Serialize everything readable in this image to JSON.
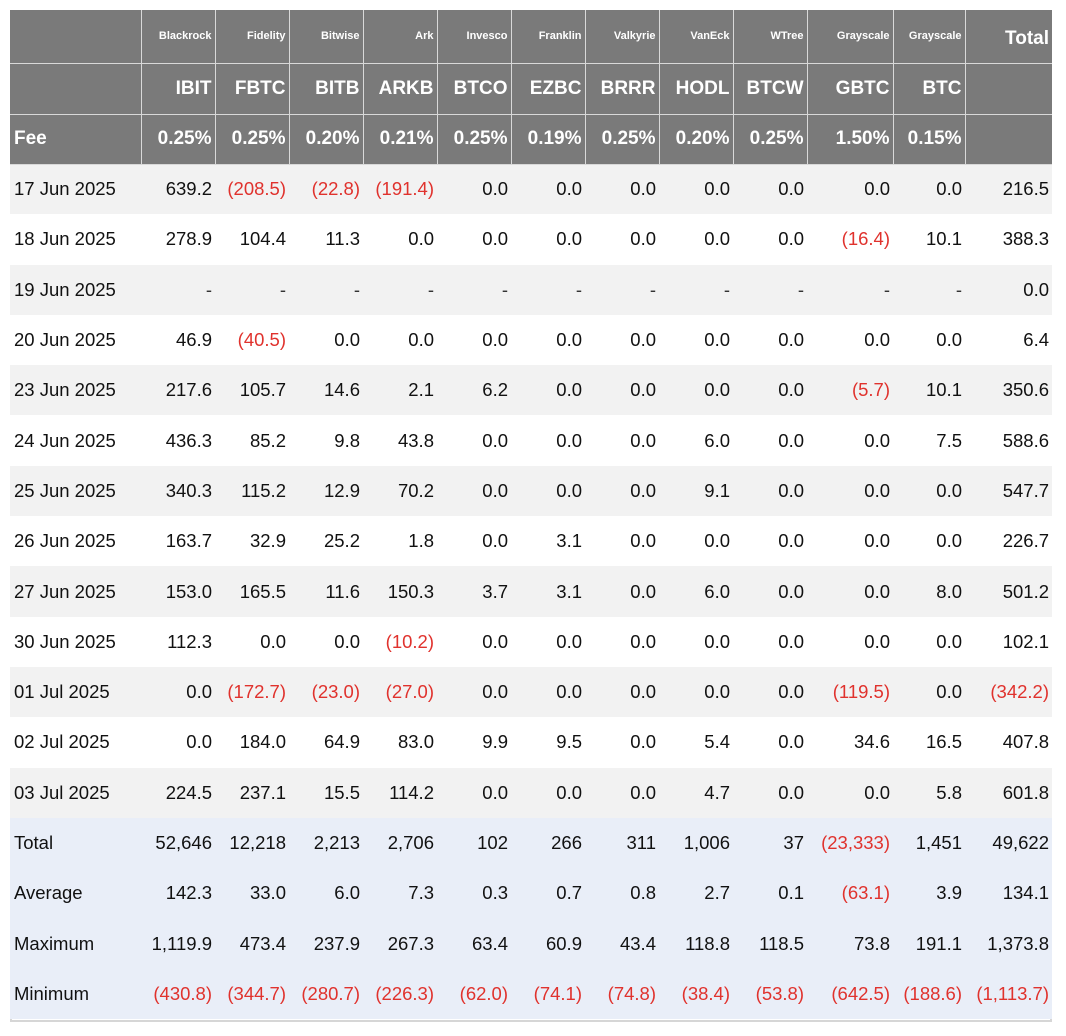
{
  "issuers": [
    "Blackrock",
    "Fidelity",
    "Bitwise",
    "Ark",
    "Invesco",
    "Franklin",
    "Valkyrie",
    "VanEck",
    "WTree",
    "Grayscale",
    "Grayscale"
  ],
  "total_label": "Total",
  "tickers": [
    "IBIT",
    "FBTC",
    "BITB",
    "ARKB",
    "BTCO",
    "EZBC",
    "BRRR",
    "HODL",
    "BTCW",
    "GBTC",
    "BTC"
  ],
  "fee_label": "Fee",
  "fees": [
    "0.25%",
    "0.25%",
    "0.20%",
    "0.21%",
    "0.25%",
    "0.19%",
    "0.25%",
    "0.20%",
    "0.25%",
    "1.50%",
    "0.15%"
  ],
  "rows": [
    {
      "label": "17 Jun 2025",
      "values": [
        "639.2",
        "(208.5)",
        "(22.8)",
        "(191.4)",
        "0.0",
        "0.0",
        "0.0",
        "0.0",
        "0.0",
        "0.0",
        "0.0",
        "216.5"
      ]
    },
    {
      "label": "18 Jun 2025",
      "values": [
        "278.9",
        "104.4",
        "11.3",
        "0.0",
        "0.0",
        "0.0",
        "0.0",
        "0.0",
        "0.0",
        "(16.4)",
        "10.1",
        "388.3"
      ]
    },
    {
      "label": "19 Jun 2025",
      "values": [
        "-",
        "-",
        "-",
        "-",
        "-",
        "-",
        "-",
        "-",
        "-",
        "-",
        "-",
        "0.0"
      ]
    },
    {
      "label": "20 Jun 2025",
      "values": [
        "46.9",
        "(40.5)",
        "0.0",
        "0.0",
        "0.0",
        "0.0",
        "0.0",
        "0.0",
        "0.0",
        "0.0",
        "0.0",
        "6.4"
      ]
    },
    {
      "label": "23 Jun 2025",
      "values": [
        "217.6",
        "105.7",
        "14.6",
        "2.1",
        "6.2",
        "0.0",
        "0.0",
        "0.0",
        "0.0",
        "(5.7)",
        "10.1",
        "350.6"
      ]
    },
    {
      "label": "24 Jun 2025",
      "values": [
        "436.3",
        "85.2",
        "9.8",
        "43.8",
        "0.0",
        "0.0",
        "0.0",
        "6.0",
        "0.0",
        "0.0",
        "7.5",
        "588.6"
      ]
    },
    {
      "label": "25 Jun 2025",
      "values": [
        "340.3",
        "115.2",
        "12.9",
        "70.2",
        "0.0",
        "0.0",
        "0.0",
        "9.1",
        "0.0",
        "0.0",
        "0.0",
        "547.7"
      ]
    },
    {
      "label": "26 Jun 2025",
      "values": [
        "163.7",
        "32.9",
        "25.2",
        "1.8",
        "0.0",
        "3.1",
        "0.0",
        "0.0",
        "0.0",
        "0.0",
        "0.0",
        "226.7"
      ]
    },
    {
      "label": "27 Jun 2025",
      "values": [
        "153.0",
        "165.5",
        "11.6",
        "150.3",
        "3.7",
        "3.1",
        "0.0",
        "6.0",
        "0.0",
        "0.0",
        "8.0",
        "501.2"
      ]
    },
    {
      "label": "30 Jun 2025",
      "values": [
        "112.3",
        "0.0",
        "0.0",
        "(10.2)",
        "0.0",
        "0.0",
        "0.0",
        "0.0",
        "0.0",
        "0.0",
        "0.0",
        "102.1"
      ]
    },
    {
      "label": "01 Jul 2025",
      "values": [
        "0.0",
        "(172.7)",
        "(23.0)",
        "(27.0)",
        "0.0",
        "0.0",
        "0.0",
        "0.0",
        "0.0",
        "(119.5)",
        "0.0",
        "(342.2)"
      ]
    },
    {
      "label": "02 Jul 2025",
      "values": [
        "0.0",
        "184.0",
        "64.9",
        "83.0",
        "9.9",
        "9.5",
        "0.0",
        "5.4",
        "0.0",
        "34.6",
        "16.5",
        "407.8"
      ]
    },
    {
      "label": "03 Jul 2025",
      "values": [
        "224.5",
        "237.1",
        "15.5",
        "114.2",
        "0.0",
        "0.0",
        "0.0",
        "4.7",
        "0.0",
        "0.0",
        "5.8",
        "601.8"
      ]
    }
  ],
  "stats": [
    {
      "label": "Total",
      "values": [
        "52,646",
        "12,218",
        "2,213",
        "2,706",
        "102",
        "266",
        "311",
        "1,006",
        "37",
        "(23,333)",
        "1,451",
        "49,622"
      ]
    },
    {
      "label": "Average",
      "values": [
        "142.3",
        "33.0",
        "6.0",
        "7.3",
        "0.3",
        "0.7",
        "0.8",
        "2.7",
        "0.1",
        "(63.1)",
        "3.9",
        "134.1"
      ]
    },
    {
      "label": "Maximum",
      "values": [
        "1,119.9",
        "473.4",
        "237.9",
        "267.3",
        "63.4",
        "60.9",
        "43.4",
        "118.8",
        "118.5",
        "73.8",
        "191.1",
        "1,373.8"
      ]
    },
    {
      "label": "Minimum",
      "values": [
        "(430.8)",
        "(344.7)",
        "(280.7)",
        "(226.3)",
        "(62.0)",
        "(74.1)",
        "(74.8)",
        "(38.4)",
        "(53.8)",
        "(642.5)",
        "(188.6)",
        "(1,113.7)"
      ]
    }
  ],
  "colors": {
    "header_bg": "#7a7a7a",
    "negative": "#e0322d",
    "stripe": "#f2f2f2",
    "stat_bg": "#e9eef8"
  }
}
